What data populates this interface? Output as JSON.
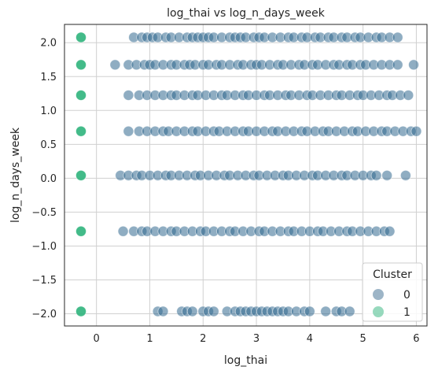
{
  "chart_data": {
    "type": "scatter",
    "title": "log_thai vs log_n_days_week",
    "xlabel": "log_thai",
    "ylabel": "log_n_days_week",
    "xlim": [
      -0.6,
      6.2
    ],
    "ylim": [
      -2.18,
      2.27
    ],
    "xticks": [
      0,
      1,
      2,
      3,
      4,
      5,
      6
    ],
    "yticks": [
      -2.0,
      -1.5,
      -1.0,
      -0.5,
      0.0,
      0.5,
      1.0,
      1.5,
      2.0
    ],
    "ytick_labels": [
      "−2.0",
      "−1.5",
      "−1.0",
      "−0.5",
      "0.0",
      "0.5",
      "1.0",
      "1.5",
      "2.0"
    ],
    "grid": true,
    "legend": {
      "title": "Cluster",
      "placement": "lower-right",
      "entries": [
        {
          "label": "0",
          "color": "#3b6b8f"
        },
        {
          "label": "1",
          "color": "#2fb47c"
        }
      ]
    },
    "levels": [
      2.079,
      1.674,
      1.225,
      0.693,
      0.041,
      -0.783,
      -1.965
    ],
    "series": [
      {
        "name": "0",
        "color": "#336a8f",
        "rows": [
          {
            "y": 2.079,
            "x": [
              0.7,
              0.85,
              0.95,
              1.05,
              1.15,
              1.3,
              1.4,
              1.55,
              1.7,
              1.8,
              1.9,
              2.0,
              2.1,
              2.2,
              2.35,
              2.5,
              2.6,
              2.7,
              2.8,
              2.95,
              3.05,
              3.15,
              3.3,
              3.45,
              3.6,
              3.7,
              3.85,
              3.95,
              4.1,
              4.2,
              4.35,
              4.45,
              4.6,
              4.7,
              4.85,
              4.95,
              5.1,
              5.25,
              5.35,
              5.5,
              5.65
            ]
          },
          {
            "y": 1.674,
            "x": [
              0.35,
              0.6,
              0.75,
              0.9,
              1.0,
              1.1,
              1.25,
              1.4,
              1.5,
              1.65,
              1.75,
              1.85,
              2.0,
              2.1,
              2.25,
              2.35,
              2.5,
              2.65,
              2.75,
              2.9,
              3.0,
              3.1,
              3.25,
              3.4,
              3.5,
              3.65,
              3.8,
              3.9,
              4.05,
              4.15,
              4.3,
              4.45,
              4.55,
              4.7,
              4.8,
              4.95,
              5.05,
              5.2,
              5.35,
              5.5,
              5.65,
              5.95
            ]
          },
          {
            "y": 1.225,
            "x": [
              0.6,
              0.8,
              0.95,
              1.1,
              1.25,
              1.4,
              1.5,
              1.65,
              1.8,
              1.9,
              2.05,
              2.2,
              2.35,
              2.45,
              2.6,
              2.75,
              2.85,
              3.0,
              3.15,
              3.25,
              3.4,
              3.55,
              3.65,
              3.8,
              3.95,
              4.05,
              4.2,
              4.35,
              4.5,
              4.6,
              4.75,
              4.9,
              5.0,
              5.15,
              5.3,
              5.45,
              5.55,
              5.7,
              5.85
            ]
          },
          {
            "y": 0.693,
            "x": [
              0.6,
              0.8,
              0.95,
              1.1,
              1.25,
              1.35,
              1.5,
              1.65,
              1.8,
              1.9,
              2.05,
              2.2,
              2.3,
              2.45,
              2.6,
              2.75,
              2.85,
              3.0,
              3.15,
              3.3,
              3.4,
              3.55,
              3.7,
              3.85,
              3.95,
              4.1,
              4.25,
              4.35,
              4.5,
              4.65,
              4.8,
              4.9,
              5.05,
              5.2,
              5.35,
              5.45,
              5.6,
              5.75,
              5.9,
              6.0
            ]
          },
          {
            "y": 0.041,
            "x": [
              0.45,
              0.6,
              0.75,
              0.85,
              1.0,
              1.15,
              1.3,
              1.4,
              1.55,
              1.7,
              1.85,
              1.95,
              2.1,
              2.25,
              2.4,
              2.5,
              2.65,
              2.8,
              2.95,
              3.05,
              3.2,
              3.35,
              3.5,
              3.6,
              3.75,
              3.9,
              4.05,
              4.15,
              4.3,
              4.45,
              4.6,
              4.7,
              4.85,
              5.0,
              5.15,
              5.25,
              5.45,
              5.8
            ]
          },
          {
            "y": -0.783,
            "x": [
              0.5,
              0.7,
              0.85,
              0.95,
              1.1,
              1.25,
              1.4,
              1.5,
              1.65,
              1.8,
              1.95,
              2.05,
              2.2,
              2.35,
              2.5,
              2.6,
              2.75,
              2.9,
              3.05,
              3.15,
              3.3,
              3.45,
              3.6,
              3.7,
              3.85,
              4.0,
              4.15,
              4.25,
              4.4,
              4.55,
              4.7,
              4.8,
              4.95,
              5.1,
              5.25,
              5.4,
              5.5
            ]
          },
          {
            "y": -1.965,
            "x": [
              1.15,
              1.25,
              1.6,
              1.7,
              1.8,
              2.0,
              2.1,
              2.2,
              2.45,
              2.6,
              2.7,
              2.8,
              2.9,
              3.0,
              3.1,
              3.2,
              3.3,
              3.4,
              3.5,
              3.6,
              3.75,
              3.9,
              4.0,
              4.3,
              4.5,
              4.6,
              4.75
            ]
          }
        ]
      },
      {
        "name": "1",
        "color": "#2fb47c",
        "points": [
          {
            "x": -0.29,
            "y": 2.079
          },
          {
            "x": -0.29,
            "y": 1.674
          },
          {
            "x": -0.29,
            "y": 1.225
          },
          {
            "x": -0.29,
            "y": 0.693
          },
          {
            "x": -0.29,
            "y": 0.041
          },
          {
            "x": -0.29,
            "y": -0.783
          },
          {
            "x": -0.29,
            "y": -1.965
          }
        ]
      }
    ]
  }
}
